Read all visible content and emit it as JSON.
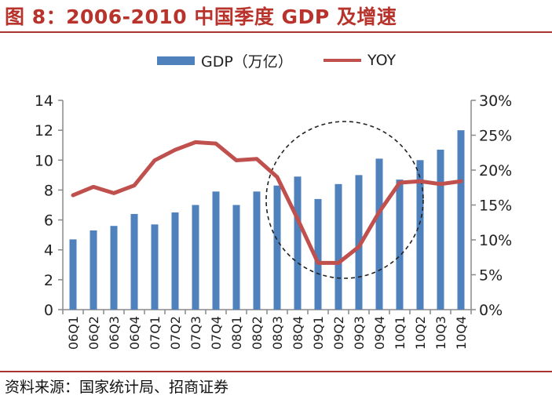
{
  "header": {
    "title": "图 8：2006-2010 中国季度 GDP 及增速"
  },
  "footer": {
    "source": "资料来源：国家统计局、招商证券"
  },
  "colors": {
    "bar": "#4f81bd",
    "line": "#c0504d",
    "rule": "#a8352f",
    "title": "#b8332c"
  },
  "chart_data": {
    "type": "bar",
    "title": "图 8：2006-2010 中国季度 GDP 及增速",
    "categories": [
      "06Q1",
      "06Q2",
      "06Q3",
      "06Q4",
      "07Q1",
      "07Q2",
      "07Q3",
      "07Q4",
      "08Q1",
      "08Q2",
      "08Q3",
      "08Q4",
      "09Q1",
      "09Q2",
      "09Q3",
      "09Q4",
      "10Q1",
      "10Q2",
      "10Q3",
      "10Q4"
    ],
    "series": [
      {
        "name": "GDP（万亿）",
        "type": "bar",
        "axis": "left",
        "values": [
          4.7,
          5.3,
          5.6,
          6.4,
          5.7,
          6.5,
          7.0,
          7.9,
          7.0,
          7.9,
          8.3,
          8.9,
          7.4,
          8.4,
          9.0,
          10.1,
          8.7,
          10.0,
          10.7,
          12.0
        ]
      },
      {
        "name": "YOY",
        "type": "line",
        "axis": "right",
        "values": [
          16.4,
          17.6,
          16.7,
          17.8,
          21.4,
          22.9,
          24.0,
          23.8,
          21.4,
          21.6,
          19.0,
          13.0,
          6.7,
          6.7,
          9.0,
          14.0,
          18.2,
          18.4,
          18.0,
          18.4
        ]
      }
    ],
    "y_left": {
      "ylim": [
        0,
        14
      ],
      "ticks": [
        "0",
        "2",
        "4",
        "6",
        "8",
        "10",
        "12",
        "14"
      ]
    },
    "y_right": {
      "ylim": [
        0,
        30
      ],
      "ticks": [
        "0%",
        "5%",
        "10%",
        "15%",
        "20%",
        "25%",
        "30%"
      ]
    },
    "legend": {
      "position": "top",
      "items": [
        "GDP（万亿）",
        "YOY"
      ]
    },
    "annotations": [
      "dashed circle around 08Q3–10Q1"
    ],
    "grid": false
  }
}
